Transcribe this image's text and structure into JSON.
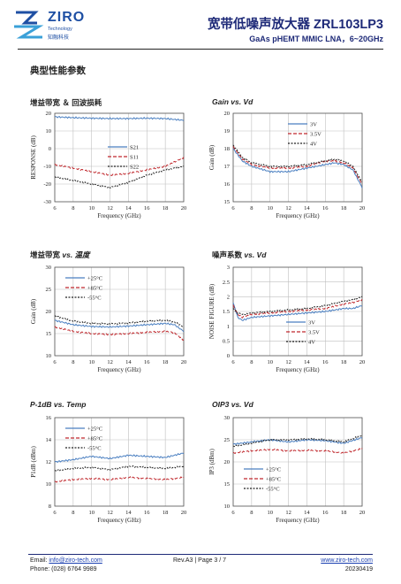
{
  "header": {
    "logo_text": "ZIRO",
    "logo_sub1": "Technology",
    "logo_sub2": "知融科技",
    "title": "宽带低噪声放大器 ZRL103LP3",
    "subtitle": "GaAs pHEMT MMIC LNA，6~20GHz"
  },
  "section_title": "典型性能参数",
  "charts": [
    {
      "title_cn": "增益带宽 ＆ 回波损耗",
      "title_en": ""
    },
    {
      "title_cn": "",
      "title_en": "Gain vs. Vd"
    },
    {
      "title_cn": "增益带宽 ",
      "title_en": "vs. 温度"
    },
    {
      "title_cn": "噪声系数 ",
      "title_en": "vs. Vd"
    },
    {
      "title_cn": "",
      "title_en": "P-1dB vs. Temp"
    },
    {
      "title_cn": "",
      "title_en": "OIP3 vs. Vd"
    }
  ],
  "chart_data": [
    {
      "type": "line",
      "xlabel": "Frequency (GHz)",
      "ylabel": "RESPONSE (dB)",
      "xlim": [
        6,
        20
      ],
      "ylim": [
        -30,
        20
      ],
      "xticks": [
        6,
        8,
        10,
        12,
        14,
        16,
        18,
        20
      ],
      "yticks": [
        -30,
        -20,
        -10,
        0,
        10,
        20
      ],
      "legend": "center",
      "series": [
        {
          "name": "S21",
          "color": "#4a7fc1",
          "dash": "",
          "x": [
            6,
            8,
            10,
            12,
            14,
            16,
            18,
            20
          ],
          "y": [
            18,
            17.5,
            17.2,
            17,
            17,
            17.2,
            17,
            16
          ]
        },
        {
          "name": "S11",
          "color": "#c0282d",
          "dash": "4,2",
          "x": [
            6,
            8,
            10,
            12,
            14,
            16,
            18,
            20
          ],
          "y": [
            -9,
            -11,
            -13,
            -15,
            -14,
            -12,
            -10,
            -5
          ]
        },
        {
          "name": "S22",
          "color": "#222222",
          "dash": "2,1.5",
          "x": [
            6,
            8,
            10,
            12,
            14,
            16,
            18,
            20
          ],
          "y": [
            -16,
            -18,
            -20,
            -22,
            -19,
            -15,
            -12,
            -10
          ]
        }
      ]
    },
    {
      "type": "line",
      "xlabel": "Frequency (GHz)",
      "ylabel": "Gain (dB)",
      "xlim": [
        6,
        20
      ],
      "ylim": [
        15,
        20
      ],
      "xticks": [
        6,
        8,
        10,
        12,
        14,
        16,
        18,
        20
      ],
      "yticks": [
        15,
        16,
        17,
        18,
        19,
        20
      ],
      "legend": "top-center",
      "series": [
        {
          "name": "3V",
          "color": "#4a7fc1",
          "dash": "",
          "x": [
            6,
            7,
            8,
            10,
            12,
            14,
            16,
            17,
            18,
            19,
            20
          ],
          "y": [
            18.0,
            17.3,
            17.0,
            16.7,
            16.7,
            16.9,
            17.1,
            17.2,
            17.1,
            16.8,
            15.8
          ]
        },
        {
          "name": "3.5V",
          "color": "#c0282d",
          "dash": "4,2",
          "x": [
            6,
            7,
            8,
            10,
            12,
            14,
            16,
            17,
            18,
            19,
            20
          ],
          "y": [
            18.1,
            17.4,
            17.1,
            16.9,
            16.9,
            17.0,
            17.3,
            17.3,
            17.2,
            16.9,
            16.0
          ]
        },
        {
          "name": "4V",
          "color": "#222222",
          "dash": "2,1.5",
          "x": [
            6,
            7,
            8,
            10,
            12,
            14,
            16,
            17,
            18,
            19,
            20
          ],
          "y": [
            18.2,
            17.5,
            17.2,
            17.0,
            17.0,
            17.1,
            17.3,
            17.4,
            17.3,
            17.0,
            16.1
          ]
        }
      ]
    },
    {
      "type": "line",
      "xlabel": "Frequency (GHz)",
      "ylabel": "Gain (dB)",
      "xlim": [
        6,
        20
      ],
      "ylim": [
        10,
        30
      ],
      "xticks": [
        6,
        8,
        10,
        12,
        14,
        16,
        18,
        20
      ],
      "yticks": [
        10,
        15,
        20,
        25,
        30
      ],
      "legend": "top-left",
      "series": [
        {
          "name": "+25°C",
          "color": "#4a7fc1",
          "dash": "",
          "x": [
            6,
            8,
            10,
            12,
            14,
            16,
            18,
            19,
            20
          ],
          "y": [
            18,
            17,
            16.6,
            16.5,
            16.7,
            17,
            17.3,
            17,
            15.5
          ]
        },
        {
          "name": "+85°C",
          "color": "#c0282d",
          "dash": "4,2",
          "x": [
            6,
            8,
            10,
            12,
            14,
            16,
            18,
            19,
            20
          ],
          "y": [
            16.5,
            15.5,
            15,
            14.8,
            15,
            15.3,
            15.5,
            15.2,
            13.5
          ]
        },
        {
          "name": "-55°C",
          "color": "#222222",
          "dash": "2,1.5",
          "x": [
            6,
            8,
            10,
            12,
            14,
            16,
            18,
            19,
            20
          ],
          "y": [
            19,
            17.8,
            17.3,
            17.2,
            17.4,
            17.8,
            18,
            17.6,
            16.5
          ]
        }
      ]
    },
    {
      "type": "line",
      "xlabel": "Frequency (GHz)",
      "ylabel": "NOISE FIGURE (dB)",
      "xlim": [
        6,
        20
      ],
      "ylim": [
        0,
        3
      ],
      "xticks": [
        6,
        8,
        10,
        12,
        14,
        16,
        18,
        20
      ],
      "yticks": [
        0,
        0.5,
        1,
        1.5,
        2,
        2.5,
        3
      ],
      "legend": "bottom-right",
      "series": [
        {
          "name": "3V",
          "color": "#4a7fc1",
          "dash": "",
          "x": [
            6,
            6.5,
            7,
            8,
            10,
            12,
            14,
            16,
            18,
            19,
            20
          ],
          "y": [
            1.8,
            1.3,
            1.2,
            1.3,
            1.35,
            1.4,
            1.45,
            1.5,
            1.6,
            1.6,
            1.7
          ]
        },
        {
          "name": "3.5V",
          "color": "#c0282d",
          "dash": "4,2",
          "x": [
            6,
            6.5,
            7,
            8,
            10,
            12,
            14,
            16,
            18,
            19,
            20
          ],
          "y": [
            1.7,
            1.4,
            1.3,
            1.4,
            1.45,
            1.5,
            1.55,
            1.6,
            1.75,
            1.8,
            1.9
          ]
        },
        {
          "name": "4V",
          "color": "#222222",
          "dash": "2,1.5",
          "x": [
            6,
            6.5,
            7,
            8,
            10,
            12,
            14,
            16,
            18,
            19,
            20
          ],
          "y": [
            1.6,
            1.45,
            1.4,
            1.45,
            1.5,
            1.55,
            1.6,
            1.7,
            1.85,
            1.9,
            2.0
          ]
        }
      ]
    },
    {
      "type": "line",
      "xlabel": "Frequency (GHz)",
      "ylabel": "P1dB (dBm)",
      "xlim": [
        6,
        20
      ],
      "ylim": [
        8,
        16
      ],
      "xticks": [
        6,
        8,
        10,
        12,
        14,
        16,
        18,
        20
      ],
      "yticks": [
        8,
        10,
        12,
        14,
        16
      ],
      "legend": "top-left",
      "series": [
        {
          "name": "+25°C",
          "color": "#4a7fc1",
          "dash": "",
          "x": [
            6,
            8,
            10,
            12,
            14,
            16,
            18,
            20
          ],
          "y": [
            12,
            12.2,
            12.5,
            12.3,
            12.6,
            12.5,
            12.4,
            12.8
          ]
        },
        {
          "name": "+85°C",
          "color": "#c0282d",
          "dash": "4,2",
          "x": [
            6,
            8,
            10,
            12,
            14,
            16,
            18,
            20
          ],
          "y": [
            10.2,
            10.4,
            10.5,
            10.4,
            10.6,
            10.5,
            10.4,
            10.6
          ]
        },
        {
          "name": "-55°C",
          "color": "#222222",
          "dash": "2,1.5",
          "x": [
            6,
            8,
            10,
            12,
            14,
            16,
            18,
            20
          ],
          "y": [
            11.2,
            11.4,
            11.5,
            11.3,
            11.6,
            11.5,
            11.4,
            11.6
          ]
        }
      ]
    },
    {
      "type": "line",
      "xlabel": "Frequency (GHz)",
      "ylabel": "IP3 (dBm)",
      "xlim": [
        6,
        20
      ],
      "ylim": [
        10,
        30
      ],
      "xticks": [
        6,
        8,
        10,
        12,
        14,
        16,
        18,
        20
      ],
      "yticks": [
        10,
        15,
        20,
        25,
        30
      ],
      "legend": "left-center",
      "series": [
        {
          "name": "+25°C",
          "color": "#4a7fc1",
          "dash": "",
          "x": [
            6,
            8,
            10,
            12,
            14,
            16,
            18,
            20
          ],
          "y": [
            24,
            24.5,
            25,
            24.5,
            25,
            24.8,
            24.2,
            25.5
          ]
        },
        {
          "name": "+85°C",
          "color": "#c0282d",
          "dash": "4,2",
          "x": [
            6,
            8,
            10,
            12,
            14,
            16,
            18,
            20
          ],
          "y": [
            22,
            22.5,
            22.8,
            22.5,
            22.6,
            22.5,
            22,
            23
          ]
        },
        {
          "name": "-55°C",
          "color": "#222222",
          "dash": "2,1.5",
          "x": [
            6,
            8,
            10,
            12,
            14,
            16,
            18,
            20
          ],
          "y": [
            23.5,
            24.2,
            25,
            25,
            25.2,
            25,
            24.5,
            26
          ]
        }
      ]
    }
  ],
  "footer": {
    "email_label": "Email:",
    "email": "info@ziro-tech.com",
    "phone_label": "Phone:",
    "phone": "(028) 6764 9989",
    "rev": "Rev.A3 | Page 3 / 7",
    "website": "www.ziro-tech.com",
    "date": "20230419"
  }
}
